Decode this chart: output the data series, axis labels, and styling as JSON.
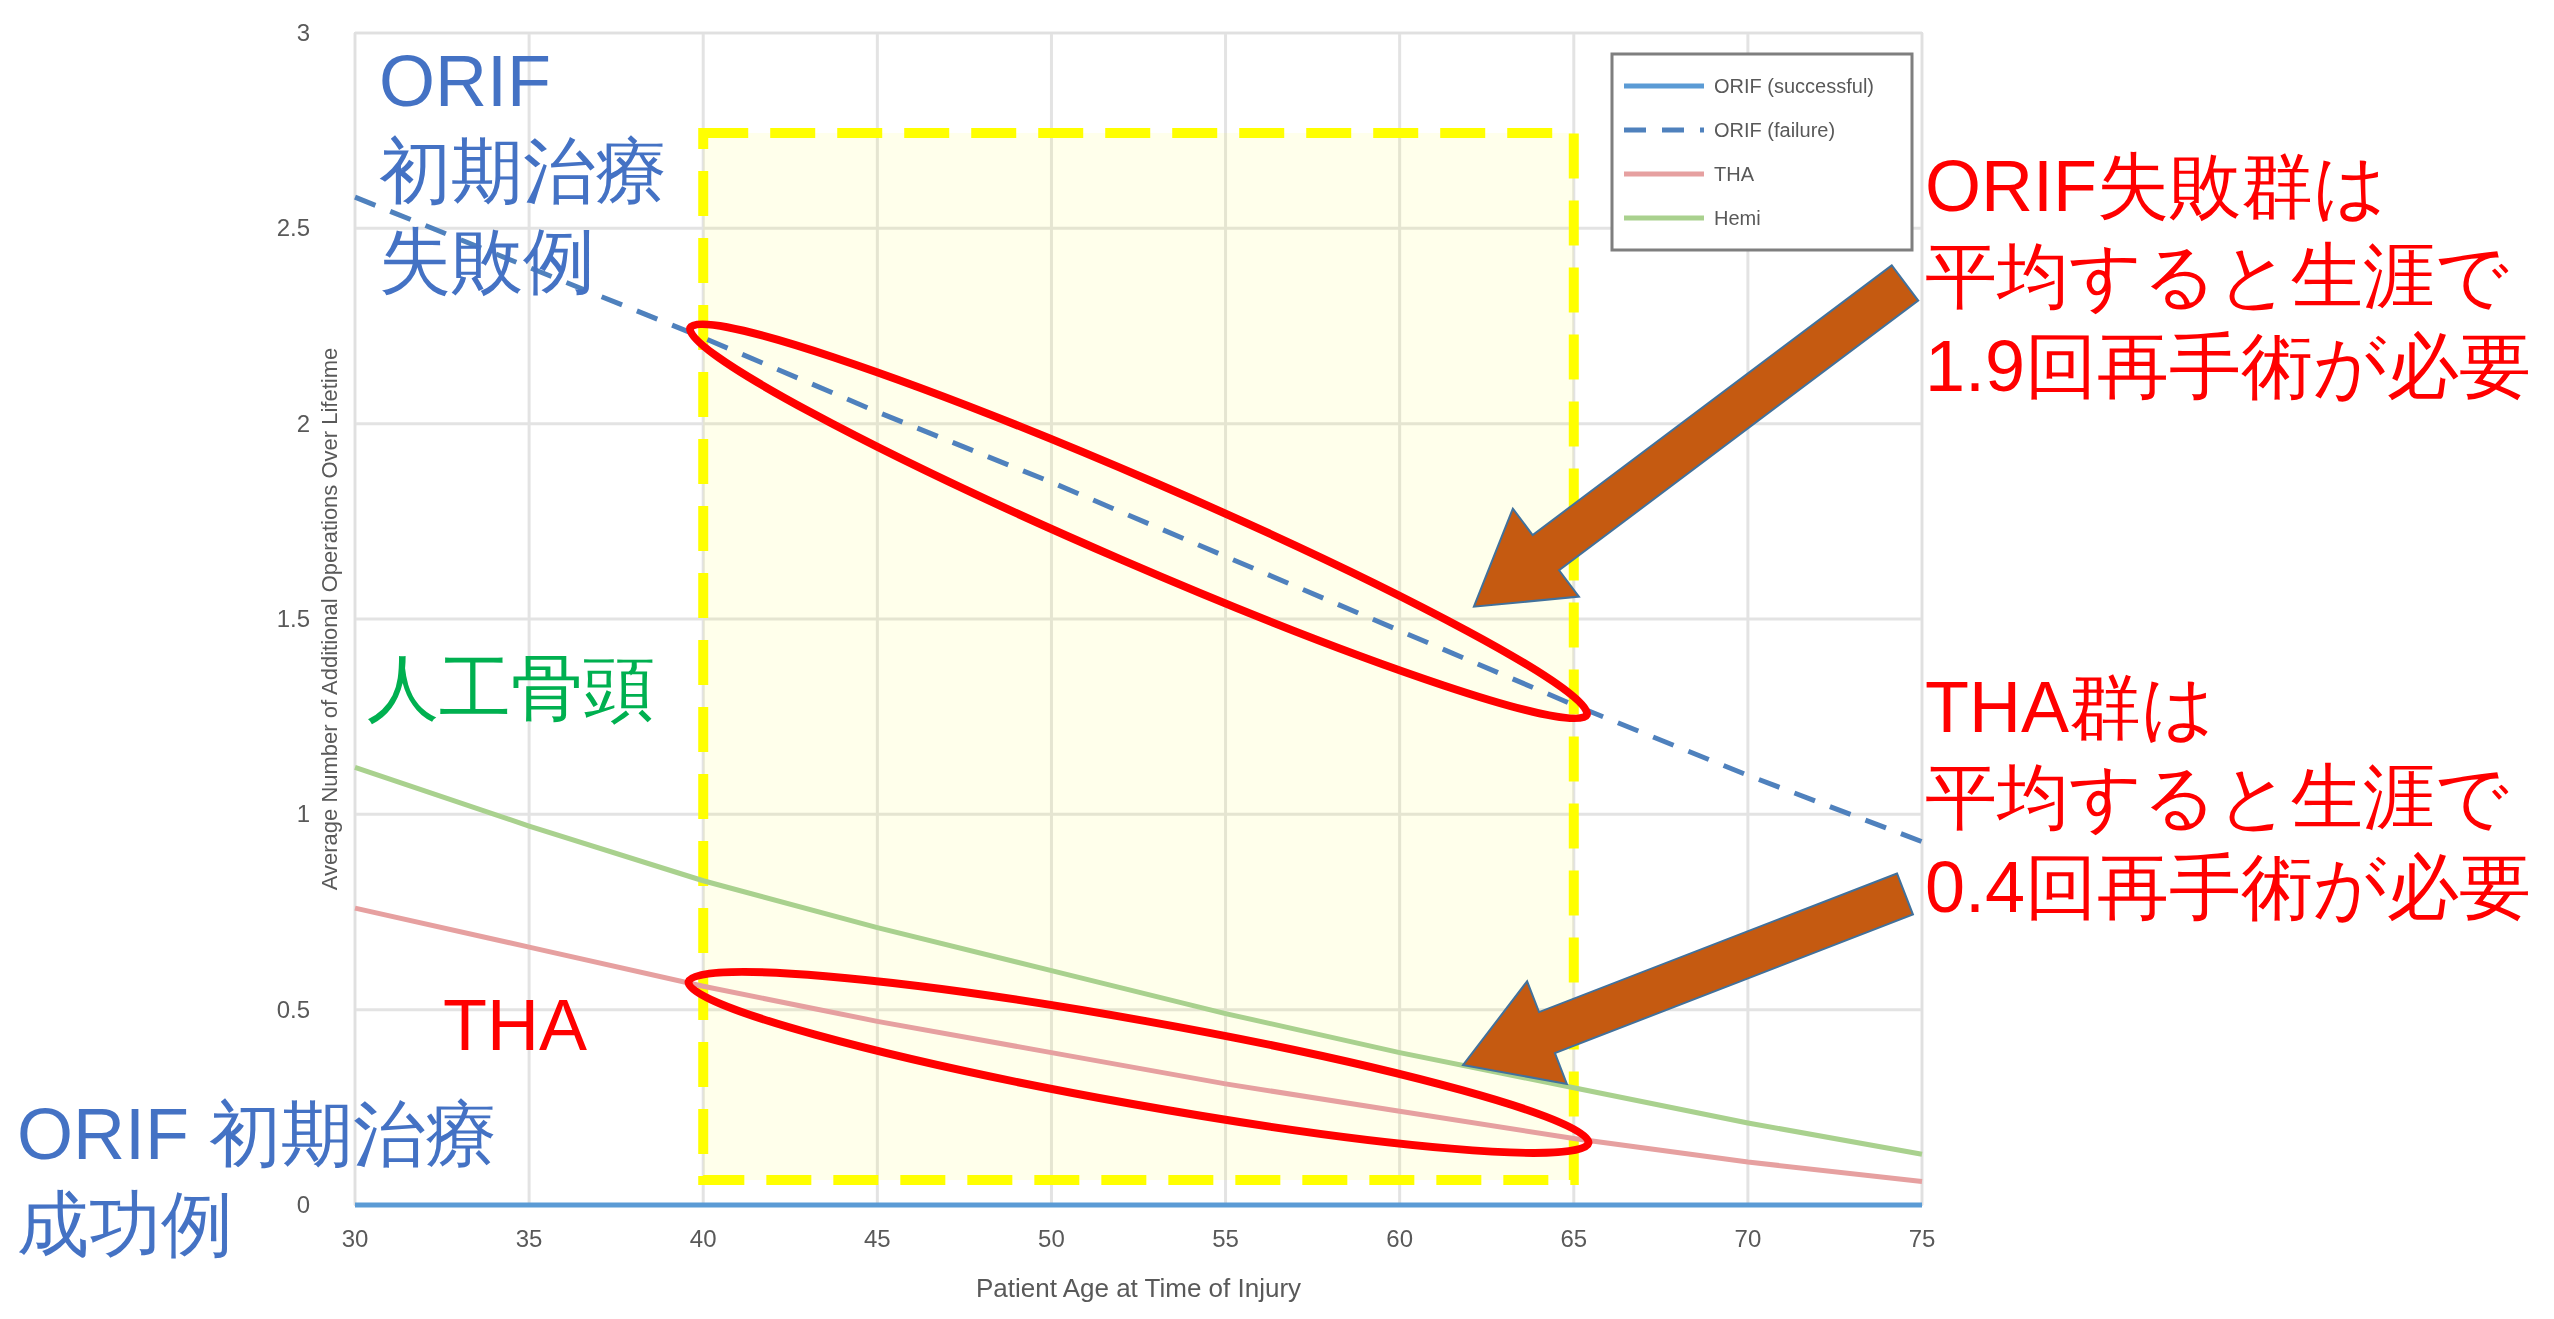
{
  "chart_data": {
    "type": "line",
    "xlabel": "Patient Age at Time of Injury",
    "ylabel": "Average Number of Additional Operations Over Lifetime",
    "x": [
      30,
      35,
      40,
      45,
      50,
      55,
      60,
      65,
      70,
      75
    ],
    "xlim": [
      30,
      75
    ],
    "xticks": [
      30,
      35,
      40,
      45,
      50,
      55,
      60,
      65,
      70,
      75
    ],
    "ylim": [
      0,
      3
    ],
    "yticks": [
      0,
      0.5,
      1,
      1.5,
      2,
      2.5,
      3
    ],
    "grid": true,
    "legend": "top right",
    "series": [
      {
        "name": "ORIF (successful)",
        "color": "#5b9bd5",
        "line_style": "solid",
        "values": [
          0,
          0,
          0,
          0,
          0,
          0,
          0,
          0,
          0,
          0
        ]
      },
      {
        "name": "ORIF (failure)",
        "color": "#4f81bd",
        "line_style": "dashed",
        "values": [
          2.58,
          2.4,
          2.22,
          2.03,
          1.85,
          1.66,
          1.47,
          1.28,
          1.1,
          0.93
        ]
      },
      {
        "name": "THA",
        "color": "#e6a0a0",
        "line_style": "solid",
        "values": [
          0.76,
          0.66,
          0.56,
          0.47,
          0.39,
          0.31,
          0.24,
          0.17,
          0.11,
          0.06
        ]
      },
      {
        "name": "Hemi",
        "color": "#a9d18e",
        "line_style": "solid",
        "values": [
          1.12,
          0.97,
          0.83,
          0.71,
          0.6,
          0.49,
          0.39,
          0.3,
          0.21,
          0.13
        ]
      }
    ],
    "bands": [
      {
        "axis": "x",
        "from": 40,
        "to": 65,
        "color": "#ffff00"
      }
    ],
    "annotations": [
      "ORIF初期治療失敗例",
      "人工骨頭",
      "THA",
      "ORIF 初期治療成功例",
      "ORIF失敗群は平均すると生涯で1.9回再手術が必要",
      "THA群は平均すると生涯で0.4回再手術が必要"
    ]
  }
}
